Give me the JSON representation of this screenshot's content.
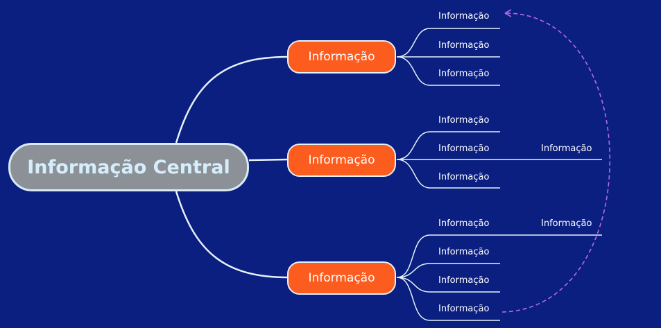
{
  "central": {
    "label": "Informação Central"
  },
  "topics": [
    {
      "label": "Informação"
    },
    {
      "label": "Informação"
    },
    {
      "label": "Informação"
    }
  ],
  "subtopics": {
    "t1": [
      "Informação",
      "Informação",
      "Informação"
    ],
    "t2": [
      "Informação",
      "Informação",
      "Informação"
    ],
    "t2_child": "Informação",
    "t3": [
      "Informação",
      "Informação",
      "Informação",
      "Informação"
    ],
    "t3_child": "Informação"
  },
  "colors": {
    "background": "#0a1f80",
    "central_fill": "#8b9196",
    "topic_fill": "#fd5c1f",
    "line": "#e6f2f9",
    "relation": "#b66be0"
  }
}
